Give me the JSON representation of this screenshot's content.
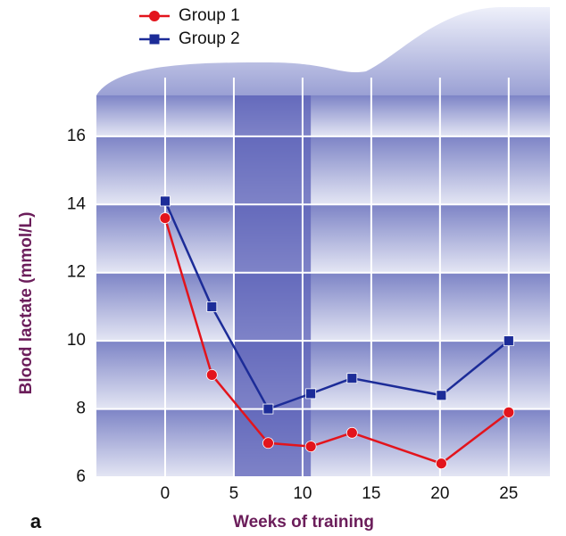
{
  "chart_data": {
    "type": "line",
    "x_label": "Weeks of training",
    "y_label": "Blood lactate (mmol/L)",
    "panel_label": "a",
    "x": [
      0,
      3.4,
      7.5,
      10.6,
      13.6,
      20.1,
      25
    ],
    "series": [
      {
        "name": "Group 1",
        "color": "#e3141c",
        "marker": "circle",
        "values": [
          13.6,
          9.0,
          7.0,
          6.9,
          7.3,
          6.4,
          7.9
        ]
      },
      {
        "name": "Group 2",
        "color": "#1c2c98",
        "marker": "square",
        "values": [
          14.1,
          11.0,
          8.0,
          8.45,
          8.9,
          8.4,
          10.0
        ]
      }
    ],
    "highlight_x": [
      5,
      10.6
    ],
    "xlim": [
      -5,
      28
    ],
    "xticks": [
      0,
      5,
      10,
      15,
      20,
      25
    ],
    "ylim": [
      6,
      17.2
    ],
    "yticks": [
      6,
      8,
      10,
      12,
      14,
      16
    ],
    "grid": true,
    "legend": "upper left"
  }
}
